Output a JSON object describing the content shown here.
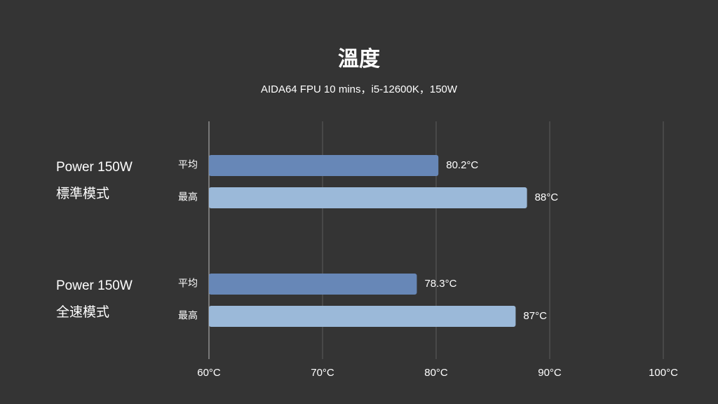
{
  "chart_data": {
    "type": "bar",
    "orientation": "horizontal",
    "title": "溫度",
    "subtitle": "AIDA64 FPU 10 mins，i5-12600K，150W",
    "categories": [
      [
        "Power 150W",
        "標準模式"
      ],
      [
        "Power 150W",
        "全速模式"
      ]
    ],
    "series": [
      {
        "name": "平均",
        "color": "#6787b7",
        "values": [
          80.2,
          78.3
        ],
        "value_labels": [
          "80.2°C",
          "78.3°C"
        ]
      },
      {
        "name": "最高",
        "color": "#9bb9d9",
        "values": [
          88,
          87
        ],
        "value_labels": [
          "88°C",
          "87°C"
        ]
      }
    ],
    "xlim": [
      60,
      100
    ],
    "xticks": [
      {
        "value": 60,
        "label": "60°C"
      },
      {
        "value": 70,
        "label": "70°C"
      },
      {
        "value": 80,
        "label": "80°C"
      },
      {
        "value": 90,
        "label": "90°C"
      },
      {
        "value": 100,
        "label": "100°C"
      }
    ],
    "grid": true
  }
}
